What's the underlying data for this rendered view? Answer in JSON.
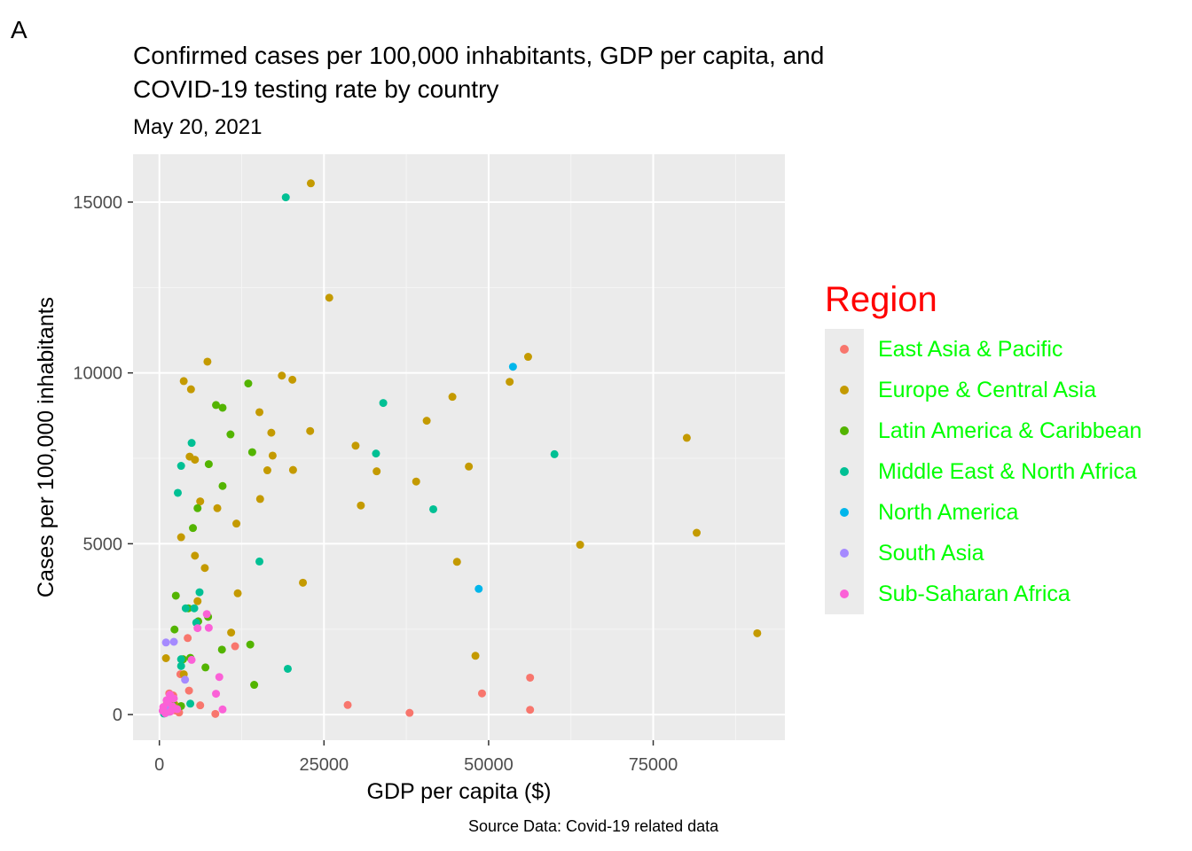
{
  "panel_letter": "A",
  "chart_data": {
    "type": "scatter",
    "title": "Confirmed cases per 100,000 inhabitants, GDP per capita, and COVID-19 testing rate by country",
    "subtitle": "May 20, 2021",
    "xlabel": "GDP per capita ($)",
    "ylabel": "Cases per 100,000 inhabitants",
    "caption": "Source Data: Covid-19 related data",
    "xlim": [
      -4000,
      95000
    ],
    "ylim": [
      -750,
      16400
    ],
    "x_ticks": [
      0,
      25000,
      50000,
      75000
    ],
    "y_ticks": [
      0,
      5000,
      10000,
      15000
    ],
    "grid": true,
    "legend": {
      "title": "Region",
      "placement": "right",
      "title_color": "#ff0000",
      "label_color": "#00ff00"
    },
    "series": [
      {
        "name": "East Asia & Pacific",
        "color": "#f8766d",
        "points": [
          [
            28600,
            280
          ],
          [
            38000,
            50
          ],
          [
            49000,
            620
          ],
          [
            56300,
            1080
          ],
          [
            56300,
            140
          ],
          [
            11500,
            2000
          ],
          [
            4500,
            700
          ],
          [
            6200,
            270
          ],
          [
            8500,
            20
          ],
          [
            3200,
            1180
          ],
          [
            1500,
            620
          ],
          [
            2100,
            560
          ],
          [
            2400,
            120
          ],
          [
            3000,
            60
          ],
          [
            1100,
            300
          ],
          [
            700,
            100
          ],
          [
            1800,
            200
          ],
          [
            4300,
            2240
          ]
        ]
      },
      {
        "name": "Europe & Central Asia",
        "color": "#c49a00",
        "points": [
          [
            23000,
            15550
          ],
          [
            25800,
            12200
          ],
          [
            56000,
            10470
          ],
          [
            53200,
            9740
          ],
          [
            44500,
            9300
          ],
          [
            40600,
            8600
          ],
          [
            29800,
            7870
          ],
          [
            33000,
            7120
          ],
          [
            39000,
            6820
          ],
          [
            30600,
            6120
          ],
          [
            47000,
            7260
          ],
          [
            45200,
            4470
          ],
          [
            48000,
            1720
          ],
          [
            63900,
            4970
          ],
          [
            80100,
            8100
          ],
          [
            81600,
            5320
          ],
          [
            90800,
            2380
          ],
          [
            18600,
            9920
          ],
          [
            20200,
            9800
          ],
          [
            15200,
            8850
          ],
          [
            17000,
            8250
          ],
          [
            22900,
            8300
          ],
          [
            17200,
            7580
          ],
          [
            16400,
            7150
          ],
          [
            20300,
            7160
          ],
          [
            15300,
            6310
          ],
          [
            21800,
            3860
          ],
          [
            11700,
            5590
          ],
          [
            11900,
            3550
          ],
          [
            10900,
            2400
          ],
          [
            7300,
            10330
          ],
          [
            3700,
            9760
          ],
          [
            4800,
            9520
          ],
          [
            4600,
            7550
          ],
          [
            5400,
            7460
          ],
          [
            6200,
            6240
          ],
          [
            8800,
            6040
          ],
          [
            3300,
            5190
          ],
          [
            5400,
            4650
          ],
          [
            6900,
            4290
          ],
          [
            5800,
            3320
          ],
          [
            1000,
            1650
          ],
          [
            3700,
            1180
          ],
          [
            2300,
            300
          ]
        ]
      },
      {
        "name": "Latin America & Caribbean",
        "color": "#53b400",
        "points": [
          [
            13500,
            9690
          ],
          [
            8600,
            9060
          ],
          [
            9600,
            8980
          ],
          [
            10800,
            8200
          ],
          [
            14100,
            7680
          ],
          [
            7500,
            7330
          ],
          [
            9600,
            6690
          ],
          [
            5800,
            6040
          ],
          [
            5100,
            5460
          ],
          [
            2500,
            3480
          ],
          [
            4400,
            3110
          ],
          [
            7400,
            2860
          ],
          [
            5900,
            2730
          ],
          [
            2300,
            2490
          ],
          [
            9500,
            1900
          ],
          [
            13800,
            2050
          ],
          [
            7000,
            1380
          ],
          [
            14400,
            870
          ],
          [
            2000,
            330
          ],
          [
            1300,
            90
          ],
          [
            3600,
            1620
          ],
          [
            4700,
            1660
          ],
          [
            3300,
            250
          ]
        ]
      },
      {
        "name": "Middle East & North Africa",
        "color": "#00c094",
        "points": [
          [
            19200,
            15140
          ],
          [
            34000,
            9120
          ],
          [
            32900,
            7640
          ],
          [
            41600,
            6010
          ],
          [
            60000,
            7620
          ],
          [
            4900,
            7950
          ],
          [
            3300,
            7280
          ],
          [
            2800,
            6490
          ],
          [
            15200,
            4480
          ],
          [
            19500,
            1340
          ],
          [
            6100,
            3580
          ],
          [
            4000,
            3110
          ],
          [
            5300,
            3110
          ],
          [
            5600,
            2690
          ],
          [
            3300,
            1420
          ],
          [
            4700,
            320
          ],
          [
            700,
            30
          ],
          [
            3300,
            1620
          ]
        ]
      },
      {
        "name": "North America",
        "color": "#00b6eb",
        "points": [
          [
            53700,
            10180
          ],
          [
            48500,
            3680
          ]
        ]
      },
      {
        "name": "South Asia",
        "color": "#a58aff",
        "points": [
          [
            1000,
            2110
          ],
          [
            2200,
            2130
          ],
          [
            3900,
            1020
          ],
          [
            1300,
            310
          ],
          [
            900,
            120
          ],
          [
            2000,
            170
          ],
          [
            1500,
            80
          ]
        ]
      },
      {
        "name": "Sub-Saharan Africa",
        "color": "#fb61d7",
        "points": [
          [
            7200,
            2940
          ],
          [
            7500,
            2540
          ],
          [
            5800,
            2530
          ],
          [
            4900,
            1600
          ],
          [
            9100,
            1100
          ],
          [
            8600,
            610
          ],
          [
            9600,
            150
          ],
          [
            1600,
            580
          ],
          [
            1300,
            360
          ],
          [
            2000,
            240
          ],
          [
            600,
            220
          ],
          [
            500,
            110
          ],
          [
            900,
            40
          ],
          [
            1700,
            90
          ],
          [
            2700,
            160
          ],
          [
            1100,
            420
          ],
          [
            2200,
            470
          ]
        ]
      }
    ]
  }
}
